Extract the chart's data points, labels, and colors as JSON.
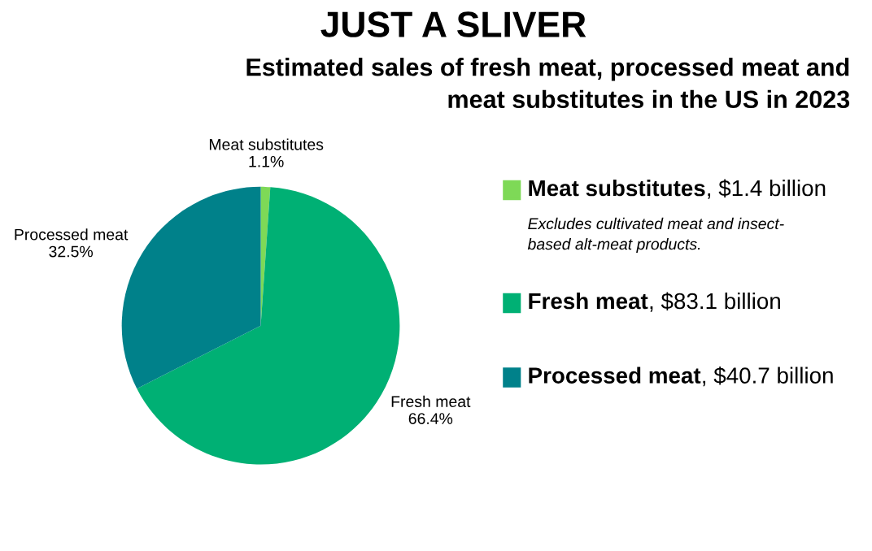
{
  "chart_data": {
    "type": "pie",
    "title": "JUST A SLIVER",
    "subtitle": "Estimated sales of fresh meat, processed meat and\nmeat substitutes in the US in 2023",
    "categories": [
      "Meat substitutes",
      "Fresh meat",
      "Processed meat"
    ],
    "values": [
      1.1,
      66.4,
      32.5
    ],
    "value_labels": [
      "1.1%",
      "66.4%",
      "32.5%"
    ],
    "colors": [
      "#7ed957",
      "#00b074",
      "#00818a"
    ],
    "legend": "right",
    "annotations": [
      ", $1.4 billion",
      "Excludes cultivated meat and insect-\nbased alt-meat products.",
      ", $83.1 billion",
      ", $40.7 billion"
    ]
  }
}
